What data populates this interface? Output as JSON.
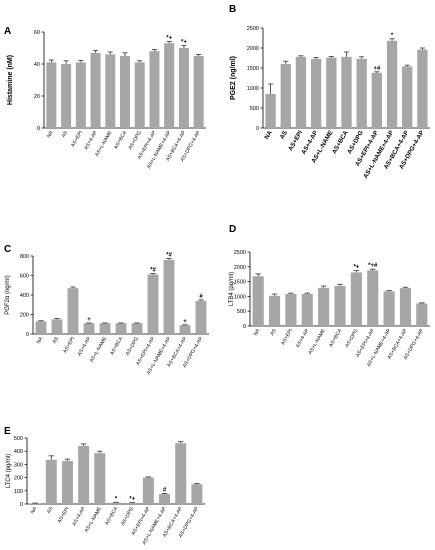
{
  "chart_data": [
    {
      "panel": "A",
      "type": "bar",
      "ylabel": "Histamine (nM)",
      "ylim": [
        0,
        60
      ],
      "yticks": [
        0,
        20,
        40,
        60
      ],
      "categories": [
        "NA",
        "AS",
        "AS+EPI",
        "AS+4-AP",
        "AS+L-NAME",
        "AS+BCA",
        "AS+DPG",
        "AS+EPI+4-AP",
        "AS+L-NAME+4-AP",
        "AS+BCA+4-AP",
        "AS+DPG+4-AP"
      ],
      "values": [
        41,
        40,
        41,
        47,
        46,
        45,
        41,
        48,
        53,
        50,
        45
      ],
      "errors": [
        1.5,
        2,
        1.2,
        1.5,
        1.5,
        2,
        1,
        1,
        1,
        1.5,
        1
      ],
      "annotations": [
        "",
        "",
        "",
        "",
        "",
        "",
        "",
        "",
        "*+",
        "*+",
        ""
      ]
    },
    {
      "panel": "B",
      "type": "bar",
      "ylabel": "PGE2 (ng/ml)",
      "ylim": [
        0,
        2500
      ],
      "yticks": [
        0,
        500,
        1000,
        1500,
        2000,
        2500
      ],
      "categories": [
        "NA",
        "AS",
        "AS+EPI",
        "AS+4-AP",
        "AS+L-NAME",
        "AS+BCA",
        "AS+DPG",
        "AS+EPI+4-AP",
        "AS+L-NAME+4-AP",
        "AS+BCA+4-AP",
        "AS+DPG+4-AP"
      ],
      "values": [
        850,
        1600,
        1780,
        1730,
        1760,
        1780,
        1730,
        1380,
        2180,
        1540,
        1960
      ],
      "errors": [
        250,
        70,
        25,
        30,
        25,
        120,
        50,
        25,
        50,
        30,
        40
      ],
      "annotations": [
        "",
        "",
        "",
        "",
        "",
        "",
        "",
        "+#",
        "*",
        "",
        ""
      ]
    },
    {
      "panel": "C",
      "type": "bar",
      "ylabel": "PGF2α (ng/ml)",
      "ylim": [
        0,
        800
      ],
      "yticks": [
        0,
        200,
        400,
        600,
        800
      ],
      "categories": [
        "NA",
        "AS",
        "AS+EPI",
        "AS+4-AP",
        "AS+L-NAME",
        "AS+BCA",
        "AS+DPG",
        "AS+EPI+4-AP",
        "AS+L-NAME+4-AP",
        "AS+BCA+4-AP",
        "AS+DPG+4-AP"
      ],
      "values": [
        130,
        150,
        470,
        110,
        110,
        110,
        110,
        610,
        760,
        90,
        340
      ],
      "errors": [
        6,
        10,
        12,
        3,
        3,
        3,
        3,
        10,
        15,
        4,
        10
      ],
      "annotations": [
        "",
        "",
        "",
        "+",
        "",
        "",
        "",
        "*#",
        "*#",
        "+",
        "#"
      ]
    },
    {
      "panel": "D",
      "type": "bar",
      "ylabel": "LTB4 (pg/ml)",
      "ylim": [
        0,
        2500
      ],
      "yticks": [
        0,
        500,
        1000,
        1500,
        2000,
        2500
      ],
      "categories": [
        "NA",
        "AS",
        "AS+EPI",
        "AS+4-AP",
        "AS+L-NAME",
        "AS+BCA",
        "AS+DPG",
        "AS+EPI+4-AP",
        "AS+L-NAME+4-AP",
        "AS+BCA+4-AP",
        "AS+DPG+4-AP"
      ],
      "values": [
        1680,
        1020,
        1080,
        1080,
        1290,
        1350,
        1810,
        1880,
        1170,
        1280,
        760
      ],
      "errors": [
        80,
        60,
        30,
        30,
        60,
        60,
        60,
        40,
        25,
        30,
        20
      ],
      "annotations": [
        "",
        "",
        "",
        "",
        "",
        "",
        "*+",
        "*+#",
        "",
        "",
        ""
      ]
    },
    {
      "panel": "E",
      "type": "bar",
      "ylabel": "LTC4 (pg/ml)",
      "ylim": [
        0,
        500
      ],
      "yticks": [
        0,
        100,
        200,
        300,
        400,
        500
      ],
      "categories": [
        "NA",
        "AS",
        "AS+EPI",
        "AS+4-AP",
        "AS+L-NAME",
        "AS+BCA",
        "AS+DPG",
        "AS+EPI+4-AP",
        "AS+L-NAME+4-AP",
        "AS+BCA+4-AP",
        "AS+DPG+4-AP"
      ],
      "values": [
        5,
        335,
        325,
        440,
        385,
        10,
        8,
        200,
        75,
        460,
        150
      ],
      "errors": [
        2,
        30,
        15,
        15,
        15,
        3,
        3,
        5,
        5,
        12,
        5
      ],
      "annotations": [
        "",
        "",
        "",
        "",
        "",
        "*",
        "*+",
        "",
        "#",
        "",
        ""
      ]
    }
  ]
}
